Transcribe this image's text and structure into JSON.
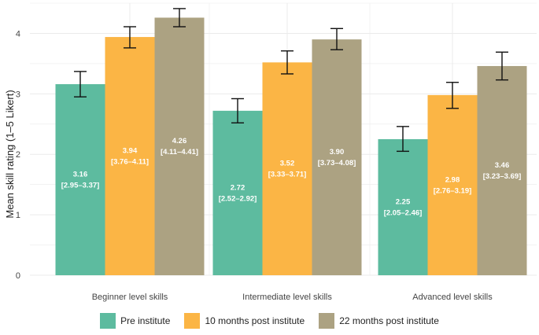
{
  "chart_data": {
    "type": "bar",
    "title": "",
    "xlabel": "",
    "ylabel": "Mean skill rating (1–5 Likert)",
    "ylim": [
      0,
      4.5
    ],
    "yticks": [
      0,
      1,
      2,
      3,
      4
    ],
    "grid": true,
    "legend_position": "bottom",
    "categories": [
      "Beginner level skills",
      "Intermediate level skills",
      "Advanced level skills"
    ],
    "series": [
      {
        "name": "Pre institute",
        "color": "#5dbb9f",
        "values": [
          3.16,
          2.72,
          2.25
        ],
        "ci_low": [
          2.95,
          2.52,
          2.05
        ],
        "ci_high": [
          3.37,
          2.92,
          2.46
        ],
        "labels": [
          "3.16",
          "2.72",
          "2.25"
        ],
        "ci_labels": [
          "[2.95–3.37]",
          "[2.52–2.92]",
          "[2.05–2.46]"
        ]
      },
      {
        "name": "10 months post institute",
        "color": "#fbb545",
        "values": [
          3.94,
          3.52,
          2.98
        ],
        "ci_low": [
          3.76,
          3.33,
          2.76
        ],
        "ci_high": [
          4.11,
          3.71,
          3.19
        ],
        "labels": [
          "3.94",
          "3.52",
          "2.98"
        ],
        "ci_labels": [
          "[3.76–4.11]",
          "[3.33–3.71]",
          "[2.76–3.19]"
        ]
      },
      {
        "name": "22 months post institute",
        "color": "#aca282",
        "values": [
          4.26,
          3.9,
          3.46
        ],
        "ci_low": [
          4.11,
          3.73,
          3.23
        ],
        "ci_high": [
          4.41,
          4.08,
          3.69
        ],
        "labels": [
          "4.26",
          "3.90",
          "3.46"
        ],
        "ci_labels": [
          "[4.11–4.41]",
          "[3.73–4.08]",
          "[3.23–3.69]"
        ]
      }
    ]
  }
}
